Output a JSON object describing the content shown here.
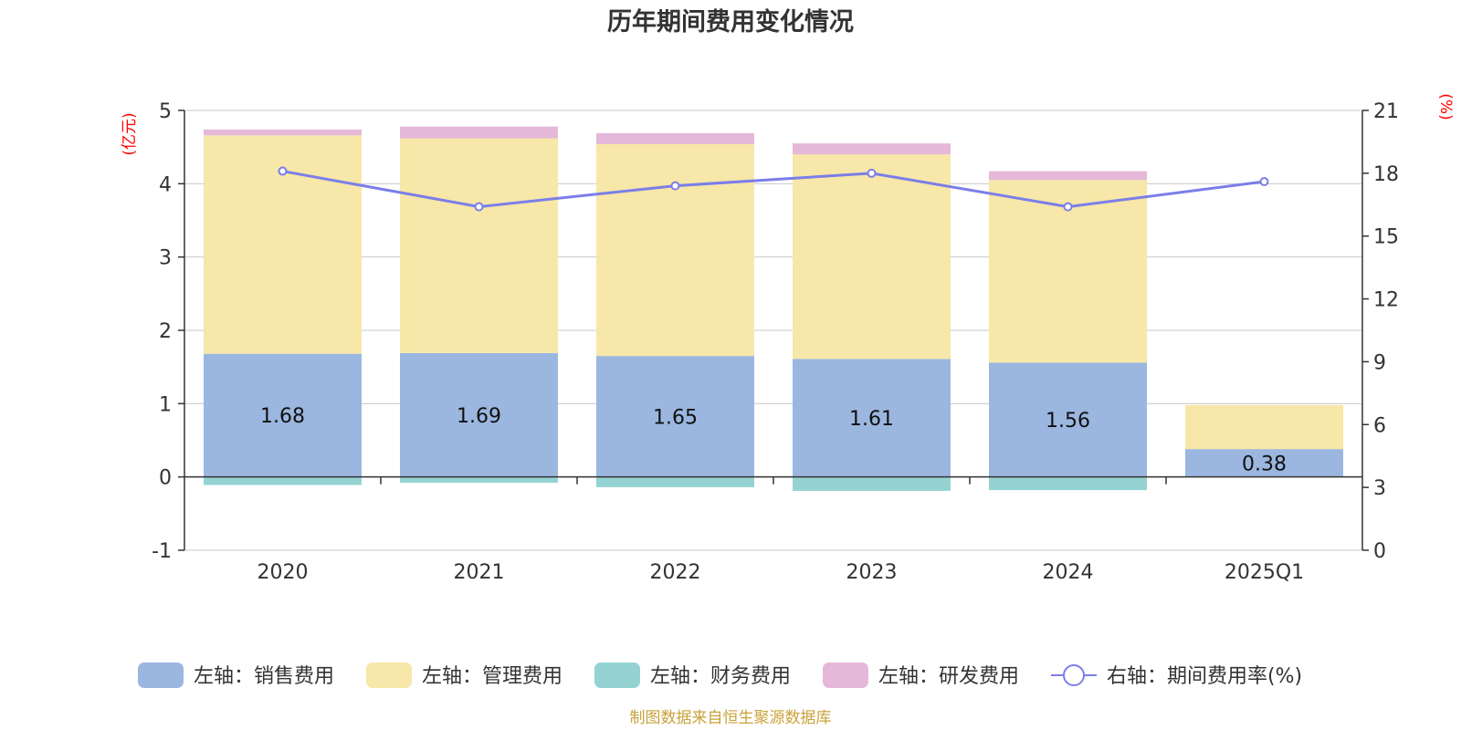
{
  "chart_data": {
    "type": "bar",
    "title": "历年期间费用变化情况",
    "categories": [
      "2020",
      "2021",
      "2022",
      "2023",
      "2024",
      "2025Q1"
    ],
    "stacked": true,
    "left_axis": {
      "unit": "(亿元)",
      "ylim": [
        -1,
        5
      ],
      "ticks": [
        "-1",
        "0",
        "1",
        "2",
        "3",
        "4",
        "5"
      ]
    },
    "right_axis": {
      "unit": "(%)",
      "ylim": [
        0,
        21
      ],
      "ticks": [
        "0",
        "3",
        "6",
        "9",
        "12",
        "15",
        "18",
        "21"
      ]
    },
    "series": [
      {
        "name": "左轴：销售费用",
        "type": "bar",
        "axis": "left",
        "color": "#9bb7e0",
        "values": [
          1.68,
          1.69,
          1.65,
          1.61,
          1.56,
          0.38
        ],
        "labels": [
          "1.68",
          "1.69",
          "1.65",
          "1.61",
          "1.56",
          "0.38"
        ]
      },
      {
        "name": "左轴：管理费用",
        "type": "bar",
        "axis": "left",
        "color": "#f7e7a8",
        "values": [
          2.98,
          2.93,
          2.89,
          2.79,
          2.49,
          0.6
        ]
      },
      {
        "name": "左轴：财务费用",
        "type": "bar",
        "axis": "left",
        "color": "#95d3d3",
        "values": [
          -0.11,
          -0.08,
          -0.14,
          -0.19,
          -0.18,
          0.0
        ]
      },
      {
        "name": "左轴：研发费用",
        "type": "bar",
        "axis": "left",
        "color": "#e5b8da",
        "values": [
          0.08,
          0.16,
          0.15,
          0.15,
          0.12,
          0.0
        ]
      },
      {
        "name": "右轴：期间费用率(%)",
        "type": "line",
        "axis": "right",
        "color": "#7b7ee8",
        "values": [
          18.1,
          16.4,
          17.4,
          18.0,
          16.4,
          17.6
        ]
      }
    ],
    "grid": true,
    "legend_position": "bottom"
  },
  "source_note": "制图数据来自恒生聚源数据库"
}
